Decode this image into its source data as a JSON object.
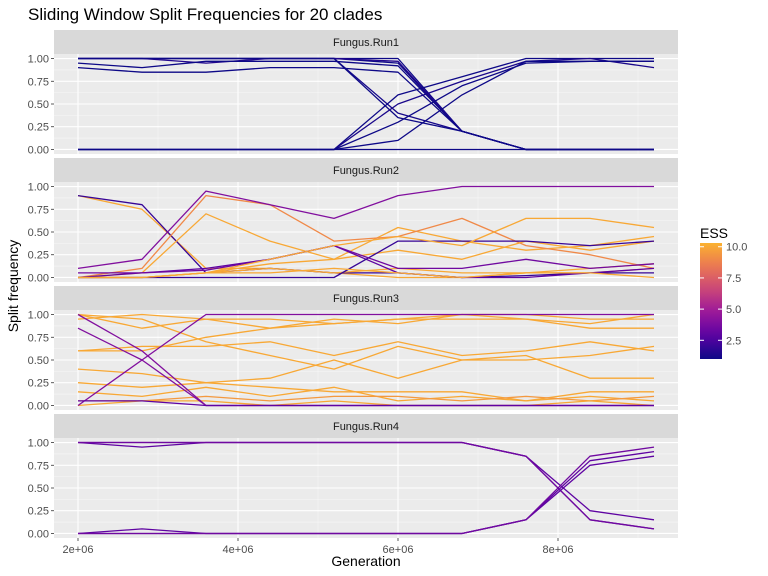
{
  "chart_data": {
    "type": "line",
    "title": "Sliding Window Split Frequencies for 20 clades",
    "xlabel": "Generation",
    "ylabel": "Split frequency",
    "x": [
      2000000,
      2800000,
      3600000,
      4400000,
      5200000,
      6000000,
      6800000,
      7600000,
      8400000,
      9200000
    ],
    "xlim": [
      1700000,
      9500000
    ],
    "ylim": [
      -0.05,
      1.05
    ],
    "x_ticks": [
      {
        "value": 2000000,
        "label": "2e+06"
      },
      {
        "value": 4000000,
        "label": "4e+06"
      },
      {
        "value": 6000000,
        "label": "6e+06"
      },
      {
        "value": 8000000,
        "label": "8e+06"
      }
    ],
    "y_ticks": [
      {
        "value": 0,
        "label": "0.00"
      },
      {
        "value": 0.25,
        "label": "0.25"
      },
      {
        "value": 0.5,
        "label": "0.50"
      },
      {
        "value": 0.75,
        "label": "0.75"
      },
      {
        "value": 1,
        "label": "1.00"
      }
    ],
    "grid": true,
    "legend": {
      "title": "ESS",
      "placement": "right",
      "range": [
        1,
        10.3
      ],
      "ticks": [
        {
          "value": 2.5,
          "label": "2.5"
        },
        {
          "value": 5,
          "label": "5.0"
        },
        {
          "value": 7.5,
          "label": "7.5"
        },
        {
          "value": 10,
          "label": "10.0"
        }
      ],
      "color_stops": [
        "#0d0887",
        "#5b02a3",
        "#9a179b",
        "#cb4678",
        "#eb7852",
        "#fbb32f",
        "#f0f921"
      ]
    },
    "panels": [
      {
        "name": "Fungus.Run1",
        "series": [
          {
            "ess": 1.0,
            "values": [
              1,
              1,
              1,
              1,
              1,
              1,
              0.2,
              0,
              0,
              0
            ]
          },
          {
            "ess": 1.0,
            "values": [
              1,
              1,
              1,
              1,
              1,
              0.95,
              0.2,
              0,
              0,
              0
            ]
          },
          {
            "ess": 1.5,
            "values": [
              1,
              1,
              0.95,
              1,
              1,
              0.97,
              0.2,
              0,
              0,
              0
            ]
          },
          {
            "ess": 1.0,
            "values": [
              0.95,
              0.9,
              0.97,
              0.97,
              0.97,
              0.92,
              0.2,
              0,
              0,
              0
            ]
          },
          {
            "ess": 1.0,
            "values": [
              0.9,
              0.85,
              0.85,
              0.9,
              0.9,
              0.85,
              0.2,
              0,
              0,
              0
            ]
          },
          {
            "ess": 1.2,
            "values": [
              1,
              1,
              1,
              1,
              1,
              0.4,
              0.2,
              0,
              0,
              0
            ]
          },
          {
            "ess": 1.0,
            "values": [
              1,
              1,
              1,
              1,
              1,
              0.35,
              0.2,
              0,
              0,
              0
            ]
          },
          {
            "ess": 1.0,
            "values": [
              0,
              0,
              0,
              0,
              0,
              0.6,
              0.8,
              1,
              1,
              1
            ]
          },
          {
            "ess": 1.3,
            "values": [
              0,
              0,
              0,
              0,
              0,
              0.5,
              0.75,
              0.97,
              1,
              0.9
            ]
          },
          {
            "ess": 1.0,
            "values": [
              0,
              0,
              0,
              0,
              0,
              0.3,
              0.7,
              0.95,
              0.97,
              0.97
            ]
          },
          {
            "ess": 1.0,
            "values": [
              0,
              0,
              0,
              0,
              0,
              0.1,
              0.6,
              0.97,
              0.97,
              0.97
            ]
          },
          {
            "ess": 1.0,
            "values": [
              0,
              0,
              0,
              0,
              0,
              0,
              0,
              0,
              0,
              0
            ]
          }
        ]
      },
      {
        "name": "Fungus.Run2",
        "series": [
          {
            "ess": 10.0,
            "values": [
              0.9,
              0.75,
              0.1,
              0.1,
              0.05,
              0,
              0,
              0.05,
              0.05,
              0.1
            ]
          },
          {
            "ess": 2.0,
            "values": [
              0.9,
              0.8,
              0.05,
              0.1,
              0.05,
              0.05,
              0,
              0.02,
              0.05,
              0.05
            ]
          },
          {
            "ess": 10.0,
            "values": [
              0,
              0.05,
              0.7,
              0.4,
              0.2,
              0.55,
              0.4,
              0.3,
              0.35,
              0.45
            ]
          },
          {
            "ess": 9.0,
            "values": [
              0,
              0.1,
              0.9,
              0.8,
              0.4,
              0.45,
              0.65,
              0.35,
              0.25,
              0.1
            ]
          },
          {
            "ess": 10.0,
            "values": [
              0,
              0,
              0.05,
              0.1,
              0.05,
              0.1,
              0.05,
              0.05,
              0.1,
              0.15
            ]
          },
          {
            "ess": 10.0,
            "values": [
              0,
              0,
              0.05,
              0.15,
              0.2,
              0.3,
              0.2,
              0.4,
              0.3,
              0.4
            ]
          },
          {
            "ess": 4.0,
            "values": [
              0.1,
              0.2,
              0.95,
              0.8,
              0.65,
              0.9,
              1,
              1,
              1,
              1
            ]
          },
          {
            "ess": 3.0,
            "values": [
              0,
              0.05,
              0.1,
              0.2,
              0.35,
              0.05,
              0,
              0,
              0.05,
              0.1
            ]
          },
          {
            "ess": 2.0,
            "values": [
              0,
              0,
              0,
              0,
              0,
              0.4,
              0.4,
              0.4,
              0.35,
              0.4
            ]
          },
          {
            "ess": 3.5,
            "values": [
              0.05,
              0.05,
              0.08,
              0.2,
              0.35,
              0.1,
              0.1,
              0.2,
              0.1,
              0.15
            ]
          },
          {
            "ess": 10.0,
            "values": [
              0,
              0,
              0.05,
              0.2,
              0.35,
              0.45,
              0.35,
              0.65,
              0.65,
              0.55
            ]
          },
          {
            "ess": 10.0,
            "values": [
              0,
              0,
              0.05,
              0.05,
              0.1,
              0.05,
              0,
              0.05,
              0.05,
              0
            ]
          }
        ]
      },
      {
        "name": "Fungus.Run3",
        "series": [
          {
            "ess": 10.0,
            "values": [
              1,
              0.95,
              0.7,
              0.55,
              0.4,
              0.65,
              0.5,
              0.5,
              0.55,
              0.65
            ]
          },
          {
            "ess": 10.0,
            "values": [
              1,
              0.85,
              0.95,
              0.85,
              0.95,
              0.9,
              1,
              0.95,
              0.85,
              0.85
            ]
          },
          {
            "ess": 10.0,
            "values": [
              0.95,
              1,
              0.95,
              0.95,
              0.9,
              0.95,
              1,
              1,
              0.95,
              0.95
            ]
          },
          {
            "ess": 10.0,
            "values": [
              0.6,
              0.6,
              0.75,
              0.85,
              0.9,
              0.95,
              0.95,
              0.95,
              0.9,
              1
            ]
          },
          {
            "ess": 10.0,
            "values": [
              0.6,
              0.65,
              0.65,
              0.7,
              0.55,
              0.7,
              0.55,
              0.6,
              0.7,
              0.6
            ]
          },
          {
            "ess": 10.0,
            "values": [
              0.4,
              0.35,
              0.25,
              0.3,
              0.5,
              0.3,
              0.5,
              0.55,
              0.3,
              0.3
            ]
          },
          {
            "ess": 10.0,
            "values": [
              0.25,
              0.2,
              0.25,
              0.2,
              0.15,
              0.15,
              0.15,
              0.05,
              0.15,
              0.15
            ]
          },
          {
            "ess": 10.0,
            "values": [
              0.15,
              0.1,
              0.2,
              0.1,
              0.2,
              0.05,
              0.1,
              0.05,
              0.1,
              0.05
            ]
          },
          {
            "ess": 9.5,
            "values": [
              0.05,
              0.05,
              0.1,
              0.05,
              0.1,
              0.1,
              0.05,
              0.1,
              0.05,
              0.1
            ]
          },
          {
            "ess": 10.0,
            "values": [
              0,
              0.05,
              0.05,
              0,
              0.05,
              0,
              0,
              0,
              0.05,
              0
            ]
          },
          {
            "ess": 4.0,
            "values": [
              1,
              0.6,
              0,
              0,
              0,
              0,
              0,
              0,
              0,
              0
            ]
          },
          {
            "ess": 4.0,
            "values": [
              0.85,
              0.5,
              0,
              0,
              0,
              0,
              0,
              0,
              0,
              0
            ]
          },
          {
            "ess": 4.0,
            "values": [
              0,
              0.5,
              1,
              1,
              1,
              1,
              1,
              1,
              1,
              1
            ]
          },
          {
            "ess": 3.0,
            "values": [
              0.05,
              0.05,
              0,
              0,
              0,
              0,
              0,
              0,
              0,
              0
            ]
          }
        ]
      },
      {
        "name": "Fungus.Run4",
        "series": [
          {
            "ess": 3.0,
            "values": [
              1,
              1,
              1,
              1,
              1,
              1,
              1,
              0.85,
              0.25,
              0.15
            ]
          },
          {
            "ess": 3.0,
            "values": [
              1,
              0.95,
              1,
              1,
              1,
              1,
              1,
              0.85,
              0.15,
              0.05
            ]
          },
          {
            "ess": 3.5,
            "values": [
              1,
              1,
              1,
              1,
              1,
              1,
              1,
              0.85,
              0.15,
              0.05
            ]
          },
          {
            "ess": 3.0,
            "values": [
              0,
              0.05,
              0,
              0,
              0,
              0,
              0,
              0.15,
              0.75,
              0.85
            ]
          },
          {
            "ess": 3.0,
            "values": [
              0,
              0,
              0,
              0,
              0,
              0,
              0,
              0.15,
              0.8,
              0.9
            ]
          },
          {
            "ess": 3.5,
            "values": [
              0,
              0,
              0,
              0,
              0,
              0,
              0,
              0.15,
              0.85,
              0.95
            ]
          }
        ]
      }
    ]
  }
}
